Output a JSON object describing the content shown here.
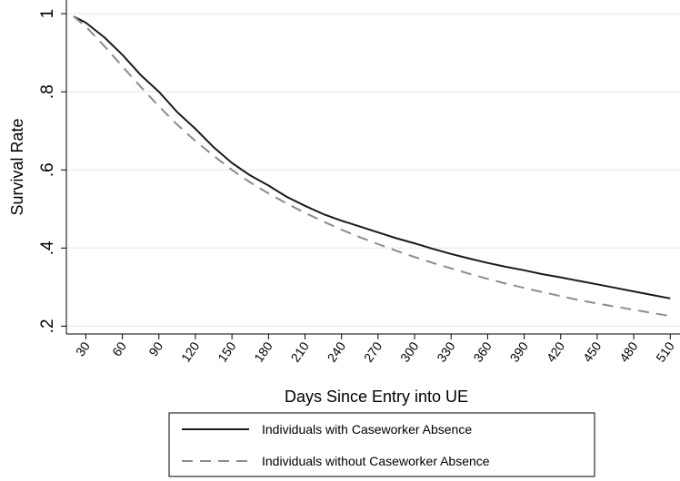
{
  "chart_data": {
    "type": "line",
    "title": "",
    "xlabel": "Days Since Entry into UE",
    "ylabel": "Survival Rate",
    "xlim": [
      14,
      518
    ],
    "ylim": [
      0.18,
      1.035
    ],
    "x_ticks": [
      30,
      60,
      90,
      120,
      150,
      180,
      210,
      240,
      270,
      300,
      330,
      360,
      390,
      420,
      450,
      480,
      510
    ],
    "x_tick_labels": [
      "30",
      "60",
      "90",
      "120",
      "150",
      "180",
      "210",
      "240",
      "270",
      "300",
      "330",
      "360",
      "390",
      "420",
      "450",
      "480",
      "510"
    ],
    "y_ticks": [
      0.2,
      0.4,
      0.6,
      0.8,
      1.0
    ],
    "y_tick_labels": [
      ".2",
      ".4",
      ".6",
      ".8",
      "1"
    ],
    "grid": "horizontal",
    "legend_position": "bottom",
    "series": [
      {
        "name": "Individuals with Caseworker Absence",
        "color": "#1a1a1a",
        "dash": "solid",
        "x": [
          20,
          30,
          45,
          60,
          75,
          90,
          105,
          120,
          135,
          150,
          165,
          180,
          195,
          210,
          225,
          240,
          255,
          270,
          285,
          300,
          315,
          330,
          345,
          360,
          375,
          390,
          405,
          420,
          435,
          450,
          465,
          480,
          495,
          510
        ],
        "y": [
          0.993,
          0.977,
          0.94,
          0.895,
          0.843,
          0.8,
          0.748,
          0.705,
          0.658,
          0.618,
          0.586,
          0.56,
          0.531,
          0.508,
          0.487,
          0.47,
          0.455,
          0.44,
          0.425,
          0.412,
          0.398,
          0.385,
          0.373,
          0.362,
          0.352,
          0.343,
          0.333,
          0.325,
          0.316,
          0.307,
          0.298,
          0.289,
          0.28,
          0.271
        ]
      },
      {
        "name": "Individuals without Caseworker Absence",
        "color": "#8c8c8c",
        "dash": "dashed",
        "x": [
          20,
          30,
          45,
          60,
          75,
          90,
          105,
          120,
          135,
          150,
          165,
          180,
          195,
          210,
          225,
          240,
          255,
          270,
          285,
          300,
          315,
          330,
          345,
          360,
          375,
          390,
          405,
          420,
          435,
          450,
          465,
          480,
          495,
          510
        ],
        "y": [
          0.993,
          0.967,
          0.918,
          0.865,
          0.813,
          0.763,
          0.716,
          0.674,
          0.636,
          0.6,
          0.568,
          0.54,
          0.514,
          0.49,
          0.468,
          0.447,
          0.428,
          0.41,
          0.393,
          0.377,
          0.362,
          0.348,
          0.334,
          0.321,
          0.309,
          0.298,
          0.287,
          0.277,
          0.267,
          0.258,
          0.25,
          0.242,
          0.234,
          0.226
        ]
      }
    ]
  }
}
